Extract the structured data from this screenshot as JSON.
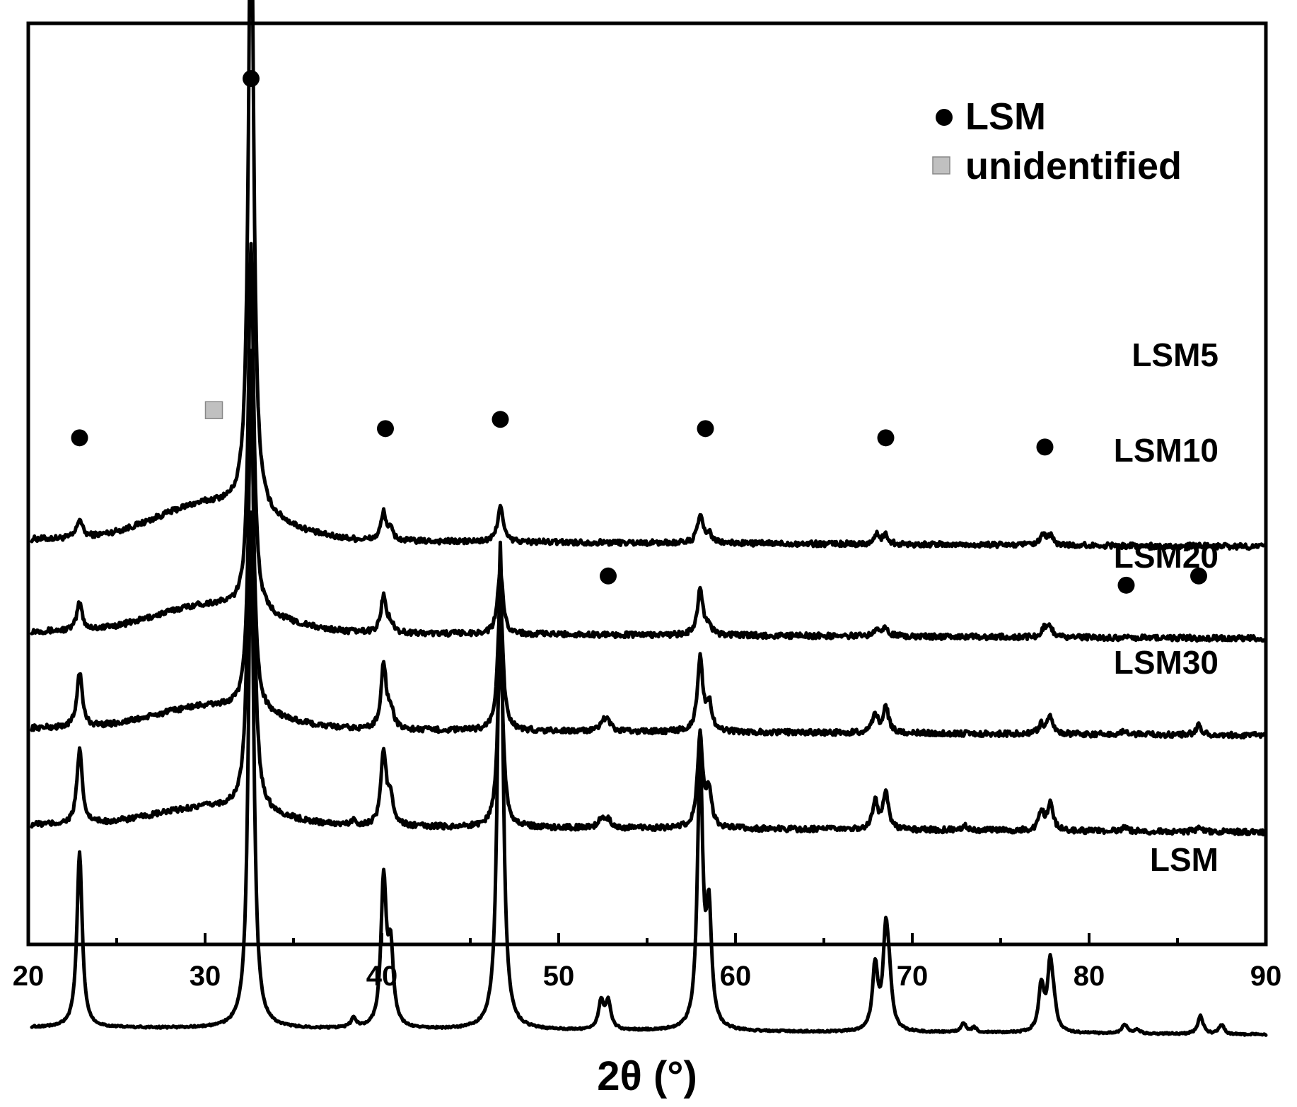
{
  "chart_data": {
    "type": "line",
    "xlabel": "2θ (°)",
    "ylabel": "",
    "xlim": [
      20,
      90
    ],
    "x_ticks": [
      20,
      30,
      40,
      50,
      60,
      70,
      80,
      90
    ],
    "yticks_shown": false,
    "grid": false,
    "legend": {
      "placement": "top-right",
      "entries": [
        {
          "label": "LSM",
          "marker": "circle",
          "color": "#000000"
        },
        {
          "label": "unidentified",
          "marker": "square",
          "color": "#c0c0c0"
        }
      ]
    },
    "series": [
      {
        "name": "LSM5",
        "baseline_level": 0.44,
        "amorphous_hump": {
          "center": 30.5,
          "height": 0.04
        },
        "peaks": [
          [
            22.9,
            0.02
          ],
          [
            32.6,
            0.7
          ],
          [
            40.1,
            0.03
          ],
          [
            40.5,
            0.01
          ],
          [
            46.7,
            0.04
          ],
          [
            58.0,
            0.03
          ],
          [
            58.5,
            0.01
          ],
          [
            68.0,
            0.01
          ],
          [
            68.5,
            0.01
          ],
          [
            77.4,
            0.01
          ],
          [
            77.8,
            0.01
          ]
        ],
        "markers": [
          {
            "x": 22.9,
            "level": 0.55,
            "symbol": "circle"
          },
          {
            "x": 30.5,
            "level": 0.58,
            "symbol": "square"
          },
          {
            "x": 32.6,
            "level": 0.94,
            "symbol": "circle"
          },
          {
            "x": 40.2,
            "level": 0.56,
            "symbol": "circle"
          },
          {
            "x": 46.7,
            "level": 0.57,
            "symbol": "circle"
          },
          {
            "x": 58.3,
            "level": 0.56,
            "symbol": "circle"
          },
          {
            "x": 68.5,
            "level": 0.55,
            "symbol": "circle"
          },
          {
            "x": 77.5,
            "level": 0.54,
            "symbol": "circle"
          }
        ]
      },
      {
        "name": "LSM10",
        "baseline_level": 0.34,
        "amorphous_hump": {
          "center": 30.5,
          "height": 0.03
        },
        "peaks": [
          [
            22.9,
            0.03
          ],
          [
            32.6,
            0.4
          ],
          [
            40.1,
            0.04
          ],
          [
            40.5,
            0.01
          ],
          [
            46.7,
            0.07
          ],
          [
            58.0,
            0.05
          ],
          [
            58.5,
            0.01
          ],
          [
            68.0,
            0.01
          ],
          [
            68.5,
            0.01
          ],
          [
            77.5,
            0.01
          ],
          [
            77.8,
            0.01
          ]
        ],
        "markers": []
      },
      {
        "name": "LSM20",
        "baseline_level": 0.235,
        "amorphous_hump": {
          "center": 30.5,
          "height": 0.025
        },
        "peaks": [
          [
            22.9,
            0.06
          ],
          [
            32.6,
            0.35
          ],
          [
            40.1,
            0.07
          ],
          [
            40.5,
            0.02
          ],
          [
            46.7,
            0.14
          ],
          [
            52.5,
            0.01
          ],
          [
            52.8,
            0.01
          ],
          [
            58.0,
            0.08
          ],
          [
            58.5,
            0.03
          ],
          [
            67.9,
            0.02
          ],
          [
            68.5,
            0.03
          ],
          [
            77.3,
            0.01
          ],
          [
            77.8,
            0.02
          ],
          [
            82.0,
            0.005
          ],
          [
            86.2,
            0.01
          ]
        ],
        "markers": [
          {
            "x": 52.8,
            "level": 0.4,
            "symbol": "circle"
          },
          {
            "x": 82.1,
            "level": 0.39,
            "symbol": "circle"
          },
          {
            "x": 86.2,
            "level": 0.4,
            "symbol": "circle"
          }
        ]
      },
      {
        "name": "LSM30",
        "baseline_level": 0.13,
        "amorphous_hump": {
          "center": 30.5,
          "height": 0.02
        },
        "peaks": [
          [
            22.9,
            0.08
          ],
          [
            32.6,
            0.5
          ],
          [
            38.4,
            0.005
          ],
          [
            40.1,
            0.08
          ],
          [
            40.5,
            0.03
          ],
          [
            46.7,
            0.2
          ],
          [
            52.4,
            0.01
          ],
          [
            52.8,
            0.01
          ],
          [
            58.0,
            0.1
          ],
          [
            58.5,
            0.04
          ],
          [
            67.9,
            0.03
          ],
          [
            68.5,
            0.04
          ],
          [
            73.0,
            0.005
          ],
          [
            77.3,
            0.02
          ],
          [
            77.8,
            0.03
          ],
          [
            82.0,
            0.005
          ],
          [
            86.3,
            0.005
          ]
        ],
        "markers": []
      },
      {
        "name": "LSM",
        "baseline_level": -0.09,
        "amorphous_hump": {
          "center": 30.5,
          "height": 0.0
        },
        "peaks": [
          [
            22.9,
            0.19
          ],
          [
            32.6,
            0.56
          ],
          [
            38.4,
            0.01
          ],
          [
            40.1,
            0.16
          ],
          [
            40.5,
            0.08
          ],
          [
            46.7,
            0.53
          ],
          [
            52.4,
            0.03
          ],
          [
            52.8,
            0.03
          ],
          [
            58.0,
            0.29
          ],
          [
            58.5,
            0.12
          ],
          [
            67.9,
            0.07
          ],
          [
            68.5,
            0.1
          ],
          [
            68.7,
            0.04
          ],
          [
            72.9,
            0.01
          ],
          [
            73.5,
            0.005
          ],
          [
            77.3,
            0.05
          ],
          [
            77.8,
            0.07
          ],
          [
            78.0,
            0.02
          ],
          [
            82.0,
            0.01
          ],
          [
            82.7,
            0.005
          ],
          [
            86.3,
            0.02
          ],
          [
            87.5,
            0.01
          ]
        ],
        "markers": []
      }
    ]
  }
}
